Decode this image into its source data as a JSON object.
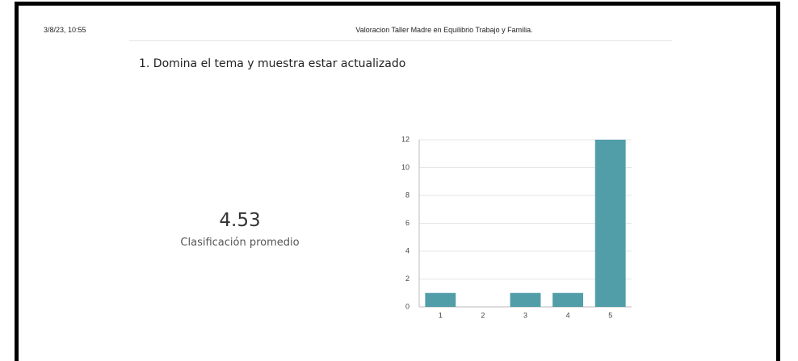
{
  "header": {
    "date": "3/8/23, 10:55",
    "title": "Valoracion Taller Madre en Equilibrio Trabajo y Familia."
  },
  "question": "1.  Domina el tema y muestra estar actualizado",
  "summary": {
    "value": 4.53,
    "label": "Clasificación promedio"
  },
  "chart_data": {
    "type": "bar",
    "categories": [
      "1",
      "2",
      "3",
      "4",
      "5"
    ],
    "values": [
      1,
      0,
      1,
      1,
      12
    ],
    "color": "#519ea9",
    "ylim": [
      0,
      12
    ],
    "yticks": [
      0,
      2,
      4,
      6,
      8,
      10,
      12
    ],
    "grid": true
  }
}
